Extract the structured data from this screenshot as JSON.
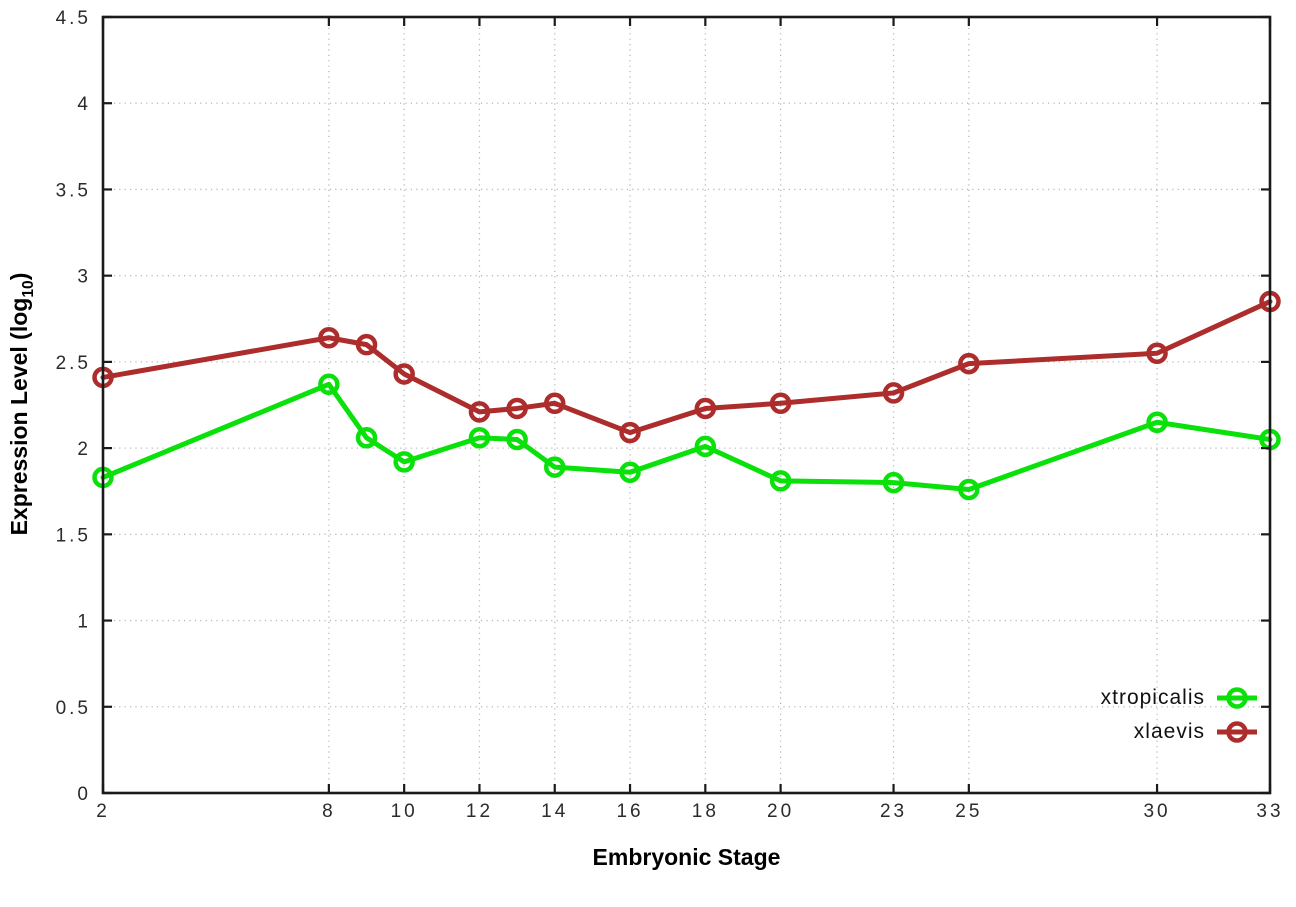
{
  "chart_data": {
    "type": "line",
    "style": "linespoints-open-circle",
    "xlabel": "Embryonic Stage",
    "ylabel": "Expression Level (log10)",
    "ylabel_parts": {
      "pre": "Expression Level (log",
      "sub": "10",
      "post": ")"
    },
    "x": [
      2,
      8,
      9,
      10,
      12,
      13,
      14,
      16,
      18,
      20,
      23,
      25,
      30,
      33
    ],
    "series": [
      {
        "name": "xtropicalis",
        "color": "#0ae00a",
        "values": [
          1.83,
          2.37,
          2.06,
          1.92,
          2.06,
          2.05,
          1.89,
          1.86,
          2.01,
          1.81,
          1.8,
          1.76,
          2.15,
          2.05
        ]
      },
      {
        "name": "xlaevis",
        "color": "#ad2c2c",
        "values": [
          2.41,
          2.64,
          2.6,
          2.43,
          2.21,
          2.23,
          2.26,
          2.09,
          2.23,
          2.26,
          2.32,
          2.49,
          2.55,
          2.85
        ]
      }
    ],
    "xlim": [
      2,
      33
    ],
    "ylim": [
      0,
      4.5
    ],
    "x_ticks": [
      2,
      8,
      10,
      12,
      14,
      16,
      18,
      20,
      23,
      25,
      30,
      33
    ],
    "x_tick_labels": [
      "2",
      "8",
      "10",
      "12",
      "14",
      "16",
      "18",
      "20",
      "23",
      "25",
      "30",
      "33"
    ],
    "y_ticks": [
      0,
      0.5,
      1,
      1.5,
      2,
      2.5,
      3,
      3.5,
      4,
      4.5
    ],
    "y_tick_labels": [
      "0",
      "0.5",
      "1",
      "1.5",
      "2",
      "2.5",
      "3",
      "3.5",
      "4",
      "4.5"
    ],
    "grid": true,
    "legend_position": "inside-bottom-right",
    "colors": {
      "background": "#ffffff",
      "axis": "#1a1a1a",
      "grid": "#b8b8b8",
      "tick_label": "#2b2b2b",
      "title": "#000000"
    }
  }
}
